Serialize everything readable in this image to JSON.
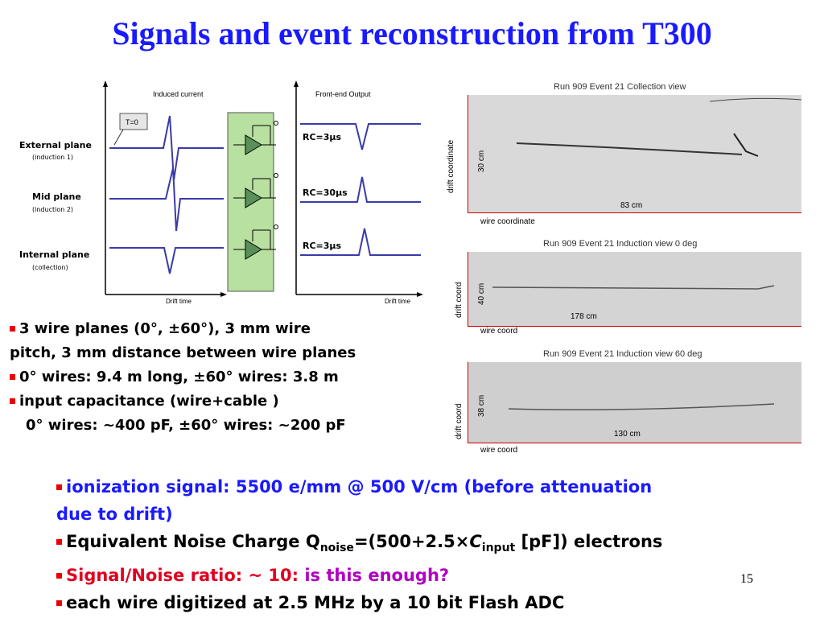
{
  "slide": {
    "title": "Signals and event reconstruction from T300",
    "page_number": "15"
  },
  "diagram": {
    "induced_current_label": "Induced current",
    "frontend_output_label": "Front-end Output",
    "t0_label": "T=0",
    "drift_time_left": "Drift time",
    "drift_time_right": "Drift time",
    "planes": [
      {
        "name": "External plane",
        "sub": "(induction 1)",
        "rc": "RC=3µs"
      },
      {
        "name": "Mid plane",
        "sub": "(induction 2)",
        "rc": "RC=30µs"
      },
      {
        "name": "Internal plane",
        "sub": "(collection)",
        "rc": "RC=3µs"
      }
    ]
  },
  "event_views": [
    {
      "title": "Run 909 Event 21 Collection view",
      "y_axis": "drift coordinate",
      "y_size": "30 cm",
      "x_size": "83 cm",
      "x_axis": "wire coordinate"
    },
    {
      "title": "Run 909 Event 21 Induction view 0 deg",
      "y_axis": "drift coord",
      "y_size": "40 cm",
      "x_size": "178 cm",
      "x_axis": "wire coord"
    },
    {
      "title": "Run 909 Event 21 Induction view 60 deg",
      "y_axis": "drift coord",
      "y_size": "38 cm",
      "x_size": "130 cm",
      "x_axis": "wire coord"
    }
  ],
  "left_bullets": {
    "b1_line1": "3 wire planes (0°, ±60°), 3 mm wire",
    "b1_line2": "pitch, 3 mm distance between wire planes",
    "b2": "0° wires: 9.4 m long, ±60° wires: 3.8 m",
    "b3_line1": "input capacitance (wire+cable )",
    "b3_line2": "0° wires: ~400 pF, ±60° wires: ~200 pF"
  },
  "bottom_bullets": {
    "b1_line1": "ionization signal: 5500 e/mm @ 500 V/cm (before attenuation",
    "b1_line2": "due to drift)",
    "b2_prefix": "Equivalent Noise Charge Q",
    "b2_sub1": "noise",
    "b2_mid": "=(500+2.5×",
    "b2_c": "C",
    "b2_sub2": "input",
    "b2_suffix": " [pF]) electrons",
    "b3_red": "Signal/Noise ratio: ~ 10: ",
    "b3_magenta": "is this enough?",
    "b4": "each wire digitized at 2.5 MHz by a 10 bit Flash ADC"
  },
  "colors": {
    "title": "#1a1aff",
    "bullet_red": "#e00020",
    "question_magenta": "#b000c0",
    "signal": "#3b3ba8",
    "amp_green": "#b8e0a0"
  }
}
